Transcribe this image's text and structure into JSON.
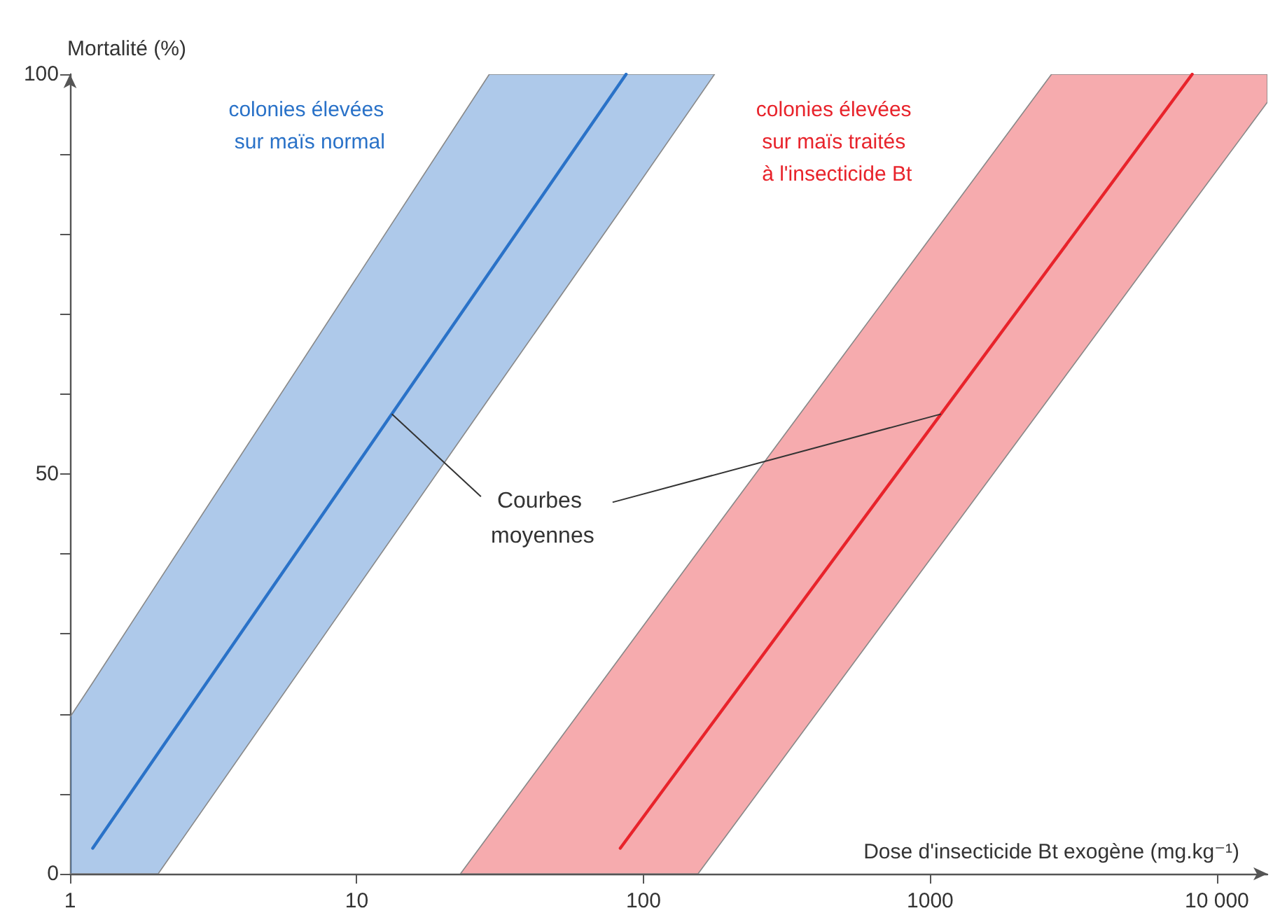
{
  "chart_data": {
    "type": "line",
    "xlabel": "Dose d'insecticide Bt exogène (mg.kg⁻¹)",
    "ylabel": "Mortalité (%)",
    "log": "x",
    "xlim": [
      1,
      15000
    ],
    "xticks": [
      1,
      10,
      100,
      1000,
      {
        "value": 10000,
        "label": "10 000"
      }
    ],
    "ylim": [
      0,
      100
    ],
    "yticks": [
      0,
      {
        "value": 10,
        "label": null
      },
      {
        "value": 20,
        "label": null
      },
      {
        "value": 30,
        "label": null
      },
      {
        "value": 40,
        "label": null
      },
      50,
      {
        "value": 60,
        "label": null
      },
      {
        "value": 70,
        "label": null
      },
      {
        "value": 80,
        "label": null
      },
      {
        "value": 90,
        "label": null
      },
      100
    ],
    "annotations": [
      {
        "text": "Courbes moyennes",
        "x": 13.2,
        "y": 57.5
      }
    ],
    "series": [
      {
        "name": "colonies élevées sur maïs normal",
        "color": "#2a72c8",
        "x": [
          1,
          1.2,
          2.03,
          29,
          87,
          177
        ],
        "values": [
          null,
          3.2,
          15.1,
          75.2,
          100,
          null
        ],
        "lower": [
          0,
          0,
          0,
          59.5,
          84,
          100
        ],
        "upper": [
          19.6,
          23.9,
          36.5,
          100,
          100,
          100
        ]
      },
      {
        "name": "colonies élevées sur maïs traités à l'insecticide Bt",
        "color": "#e8232b",
        "x": [
          23,
          83,
          155,
          2650,
          8200,
          15000
        ],
        "values": [
          null,
          3.2,
          16.4,
          76.2,
          100,
          null
        ],
        "lower": [
          0,
          0,
          0,
          59.9,
          83.8,
          96.5
        ],
        "upper": [
          0,
          27.1,
          40.3,
          100,
          100,
          100
        ]
      }
    ]
  }
}
